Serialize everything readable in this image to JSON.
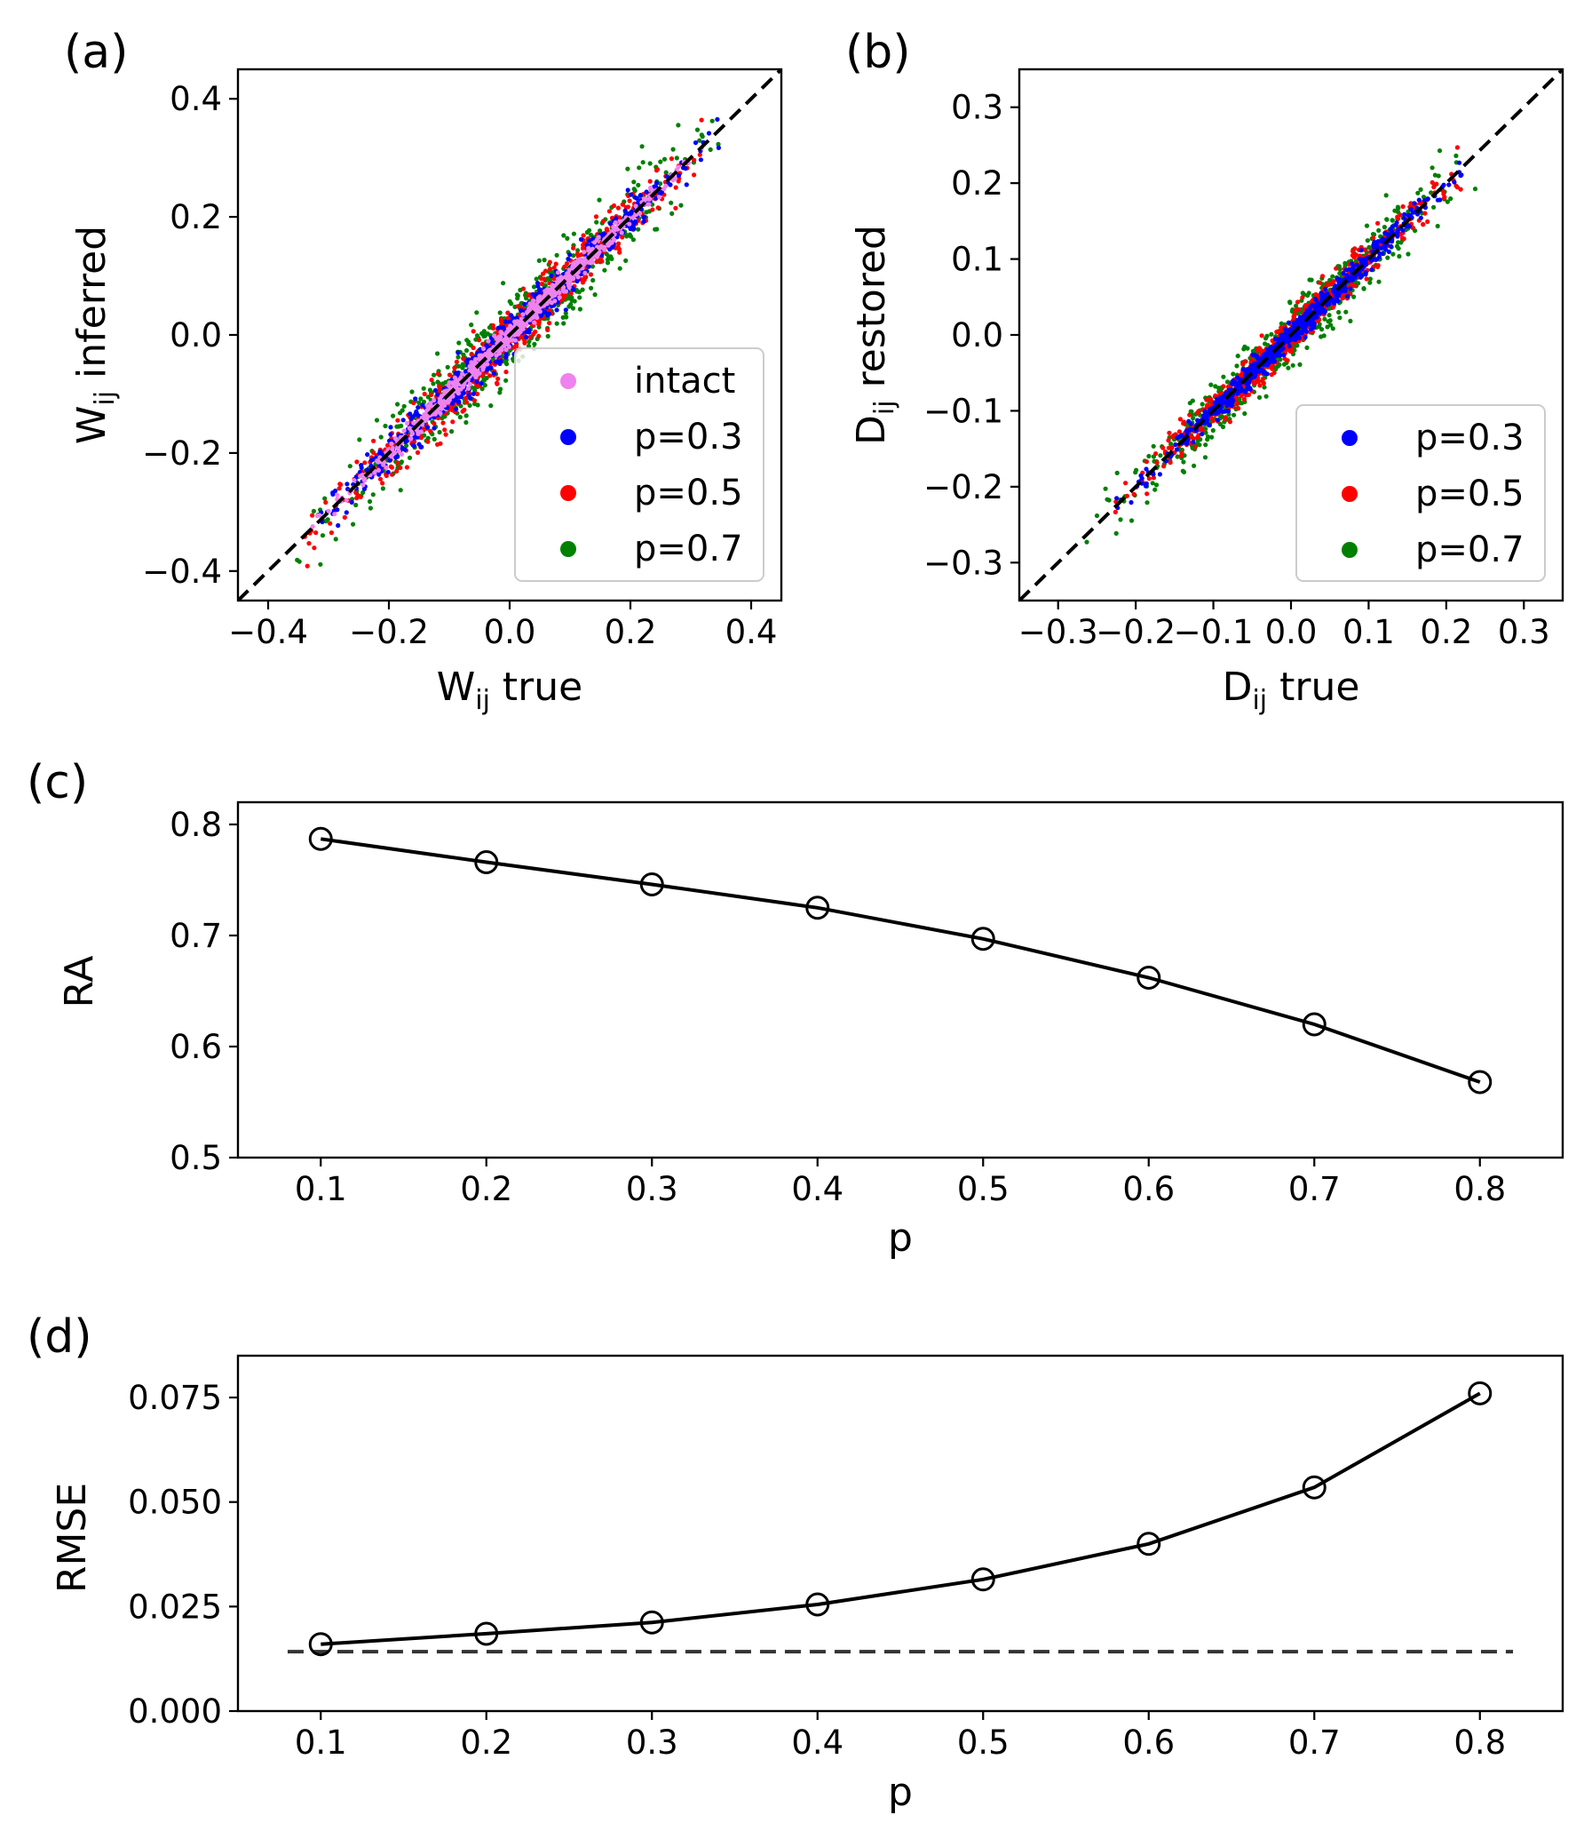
{
  "chart_data": [
    {
      "type": "scatter",
      "panel_label": "(a)",
      "xlabel": {
        "main": "W",
        "sub": "ij",
        "rest": " true"
      },
      "ylabel": {
        "main": "W",
        "sub": "ij",
        "rest": " inferred"
      },
      "xlim": [
        -0.45,
        0.45
      ],
      "ylim": [
        -0.45,
        0.45
      ],
      "xticks": [
        -0.4,
        -0.2,
        0.0,
        0.2,
        0.4
      ],
      "yticks": [
        -0.4,
        -0.2,
        0.0,
        0.2,
        0.4
      ],
      "xtick_labels": [
        "−0.4",
        "−0.2",
        "0.0",
        "0.2",
        "0.4"
      ],
      "ytick_labels": [
        "−0.4",
        "−0.2",
        "0.0",
        "0.2",
        "0.4"
      ],
      "reference_line": "y = x (dashed)",
      "legend_position": "lower-right",
      "series": [
        {
          "name": "p=0.7",
          "color": "#008000",
          "x_range": [
            -0.36,
            0.36
          ],
          "spread": 0.06
        },
        {
          "name": "p=0.5",
          "color": "#ff0000",
          "x_range": [
            -0.35,
            0.36
          ],
          "spread": 0.04
        },
        {
          "name": "p=0.3",
          "color": "#0000ff",
          "x_range": [
            -0.34,
            0.36
          ],
          "spread": 0.028
        },
        {
          "name": "intact",
          "color": "#ee82ee",
          "x_range": [
            -0.33,
            0.33
          ],
          "spread": 0.015
        }
      ],
      "legend_order": [
        "intact",
        "p=0.3",
        "p=0.5",
        "p=0.7"
      ]
    },
    {
      "type": "scatter",
      "panel_label": "(b)",
      "xlabel": {
        "main": "D",
        "sub": "ij",
        "rest": " true"
      },
      "ylabel": {
        "main": "D",
        "sub": "ij",
        "rest": " restored"
      },
      "xlim": [
        -0.35,
        0.35
      ],
      "ylim": [
        -0.35,
        0.35
      ],
      "xticks": [
        -0.3,
        -0.2,
        -0.1,
        0.0,
        0.1,
        0.2,
        0.3
      ],
      "yticks": [
        -0.3,
        -0.2,
        -0.1,
        0.0,
        0.1,
        0.2,
        0.3
      ],
      "xtick_labels": [
        "−0.3",
        "−0.2",
        "−0.1",
        "0.0",
        "0.1",
        "0.2",
        "0.3"
      ],
      "ytick_labels": [
        "−0.3",
        "−0.2",
        "−0.1",
        "0.0",
        "0.1",
        "0.2",
        "0.3"
      ],
      "reference_line": "y = x (dashed)",
      "legend_position": "lower-right",
      "series": [
        {
          "name": "p=0.7",
          "color": "#008000",
          "x_range": [
            -0.28,
            0.24
          ],
          "spread": 0.035
        },
        {
          "name": "p=0.5",
          "color": "#ff0000",
          "x_range": [
            -0.24,
            0.22
          ],
          "spread": 0.022
        },
        {
          "name": "p=0.3",
          "color": "#0000ff",
          "x_range": [
            -0.23,
            0.22
          ],
          "spread": 0.014
        }
      ],
      "legend_order": [
        "p=0.3",
        "p=0.5",
        "p=0.7"
      ]
    },
    {
      "type": "line",
      "panel_label": "(c)",
      "xlabel": "p",
      "ylabel": "RA",
      "xlim": [
        0.05,
        0.85
      ],
      "ylim": [
        0.5,
        0.82
      ],
      "xticks": [
        0.1,
        0.2,
        0.3,
        0.4,
        0.5,
        0.6,
        0.7,
        0.8
      ],
      "yticks": [
        0.5,
        0.6,
        0.7,
        0.8
      ],
      "xtick_labels": [
        "0.1",
        "0.2",
        "0.3",
        "0.4",
        "0.5",
        "0.6",
        "0.7",
        "0.8"
      ],
      "ytick_labels": [
        "0.5",
        "0.6",
        "0.7",
        "0.8"
      ],
      "x": [
        0.1,
        0.2,
        0.3,
        0.4,
        0.5,
        0.6,
        0.7,
        0.8
      ],
      "y": [
        0.787,
        0.766,
        0.746,
        0.725,
        0.697,
        0.662,
        0.62,
        0.568
      ],
      "marker": "open-circle",
      "color": "#000000"
    },
    {
      "type": "line",
      "panel_label": "(d)",
      "xlabel": "p",
      "ylabel": "RMSE",
      "xlim": [
        0.05,
        0.85
      ],
      "ylim": [
        0.0,
        0.085
      ],
      "xticks": [
        0.1,
        0.2,
        0.3,
        0.4,
        0.5,
        0.6,
        0.7,
        0.8
      ],
      "yticks": [
        0.0,
        0.025,
        0.05,
        0.075
      ],
      "xtick_labels": [
        "0.1",
        "0.2",
        "0.3",
        "0.4",
        "0.5",
        "0.6",
        "0.7",
        "0.8"
      ],
      "ytick_labels": [
        "0.000",
        "0.025",
        "0.050",
        "0.075"
      ],
      "x": [
        0.1,
        0.2,
        0.3,
        0.4,
        0.5,
        0.6,
        0.7,
        0.8
      ],
      "y": [
        0.016,
        0.0185,
        0.0212,
        0.0255,
        0.0315,
        0.04,
        0.0535,
        0.076
      ],
      "marker": "open-circle",
      "color": "#000000",
      "baseline": {
        "y": 0.0142,
        "x_range": [
          0.08,
          0.82
        ],
        "style": "dashed",
        "color": "#333333"
      }
    }
  ]
}
